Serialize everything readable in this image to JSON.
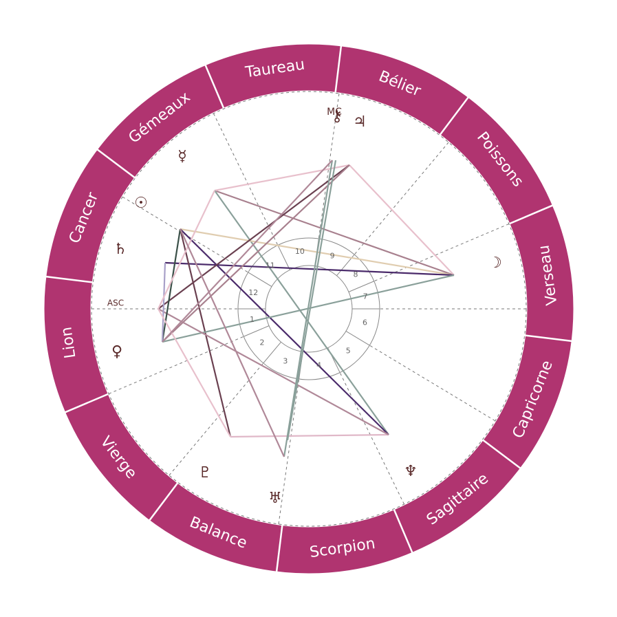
{
  "signs": [
    "Bélier",
    "Taureau",
    "Gémeaux",
    "Cancer",
    "Lion",
    "Vierge",
    "Balance",
    "Scorpion",
    "Sagittaire",
    "Capricorne",
    "Verseau",
    "Poissons"
  ],
  "houses": [
    1,
    2,
    3,
    4,
    5,
    6,
    7,
    8,
    9,
    10,
    11,
    12
  ],
  "angles": {
    "asc": "ASC",
    "mc": "MC"
  },
  "planets": {
    "sun": "☉",
    "moon": "☽",
    "mercury": "☿",
    "venus": "♀",
    "jupiter": "♃",
    "saturn": "♄",
    "uranus": "♅",
    "neptune": "♆",
    "pluto": "♇",
    "chiron": "⚷"
  }
}
